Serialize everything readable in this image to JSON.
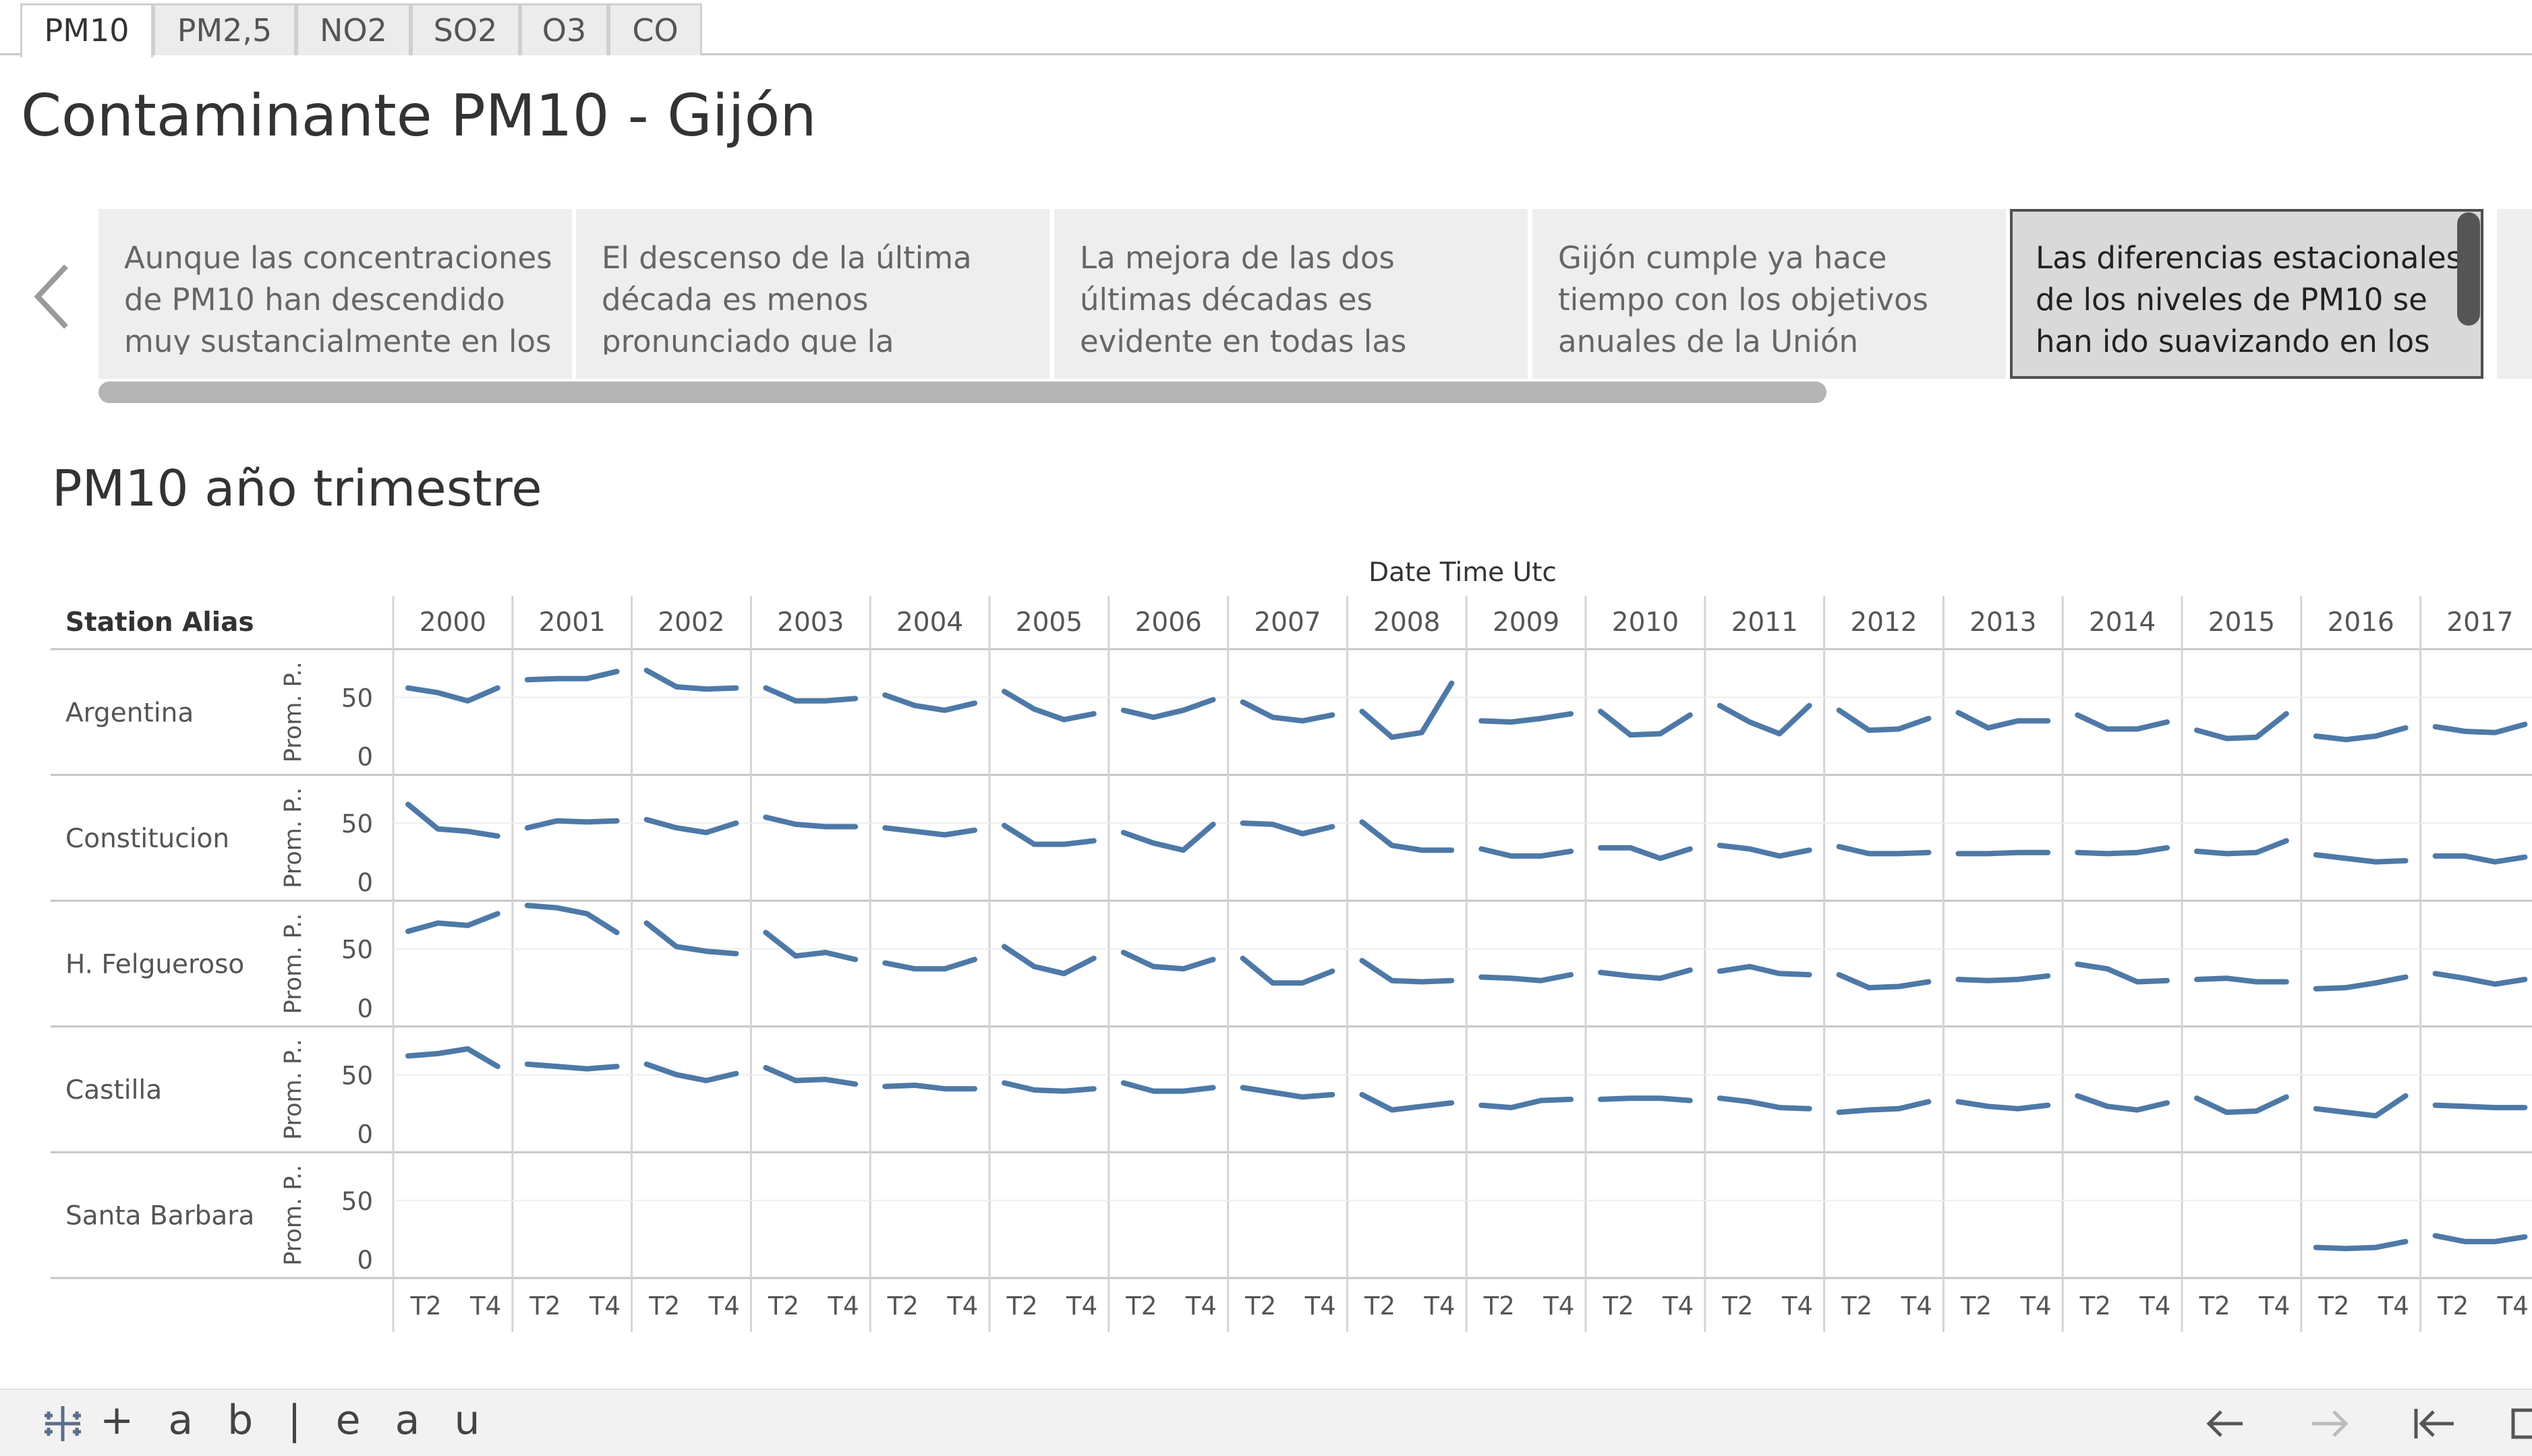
{
  "tabs": [
    {
      "label": "PM10",
      "active": true
    },
    {
      "label": "PM2,5",
      "active": false
    },
    {
      "label": "NO2",
      "active": false
    },
    {
      "label": "SO2",
      "active": false
    },
    {
      "label": "O3",
      "active": false
    },
    {
      "label": "CO",
      "active": false
    }
  ],
  "dashboard_title": "Contaminante PM10 - Gijón",
  "story_points": [
    {
      "text": "Aunque las concentraciones de PM10 han descendido muy sustancialmente en los",
      "active": false
    },
    {
      "text": "El descenso de la última década es menos pronunciado que la anterior,",
      "active": false
    },
    {
      "text": "La mejora de las dos últimas décadas es evidente en todas las estaciones. Los niveles de",
      "active": false
    },
    {
      "text": "Gijón cumple ya hace tiempo con los objetivos anuales de la Unión Europea, pero no con",
      "active": false
    },
    {
      "text": "Las diferencias estacionales de los niveles de PM10 se han ido suavizando en los últimos",
      "active": true
    }
  ],
  "sheet_title": "PM10 año trimestre",
  "icons": {
    "nav_prev": "chevron-left-icon",
    "logo": "tableau-logo-icon",
    "undo": "arrow-left-icon",
    "redo": "arrow-right-icon",
    "revert": "revert-to-start-icon",
    "more": "pause-icon"
  },
  "branding": {
    "logo_text": "+ a b | e a u"
  },
  "colors": {
    "line": "#4e79a7",
    "grid": "#d4d4d4",
    "axis": "#c6c6c6",
    "text": "#555555"
  },
  "chart_data": {
    "type": "line",
    "title": "PM10 año trimestre",
    "column_header": "Date Time Utc",
    "row_header": "Station Alias",
    "y_axis_label": "Prom. P..",
    "y_ticks": [
      0,
      50
    ],
    "ylim": [
      0,
      75
    ],
    "years": [
      "2000",
      "2001",
      "2002",
      "2003",
      "2004",
      "2005",
      "2006",
      "2007",
      "2008",
      "2009",
      "2010",
      "2011",
      "2012",
      "2013",
      "2014",
      "2015",
      "2016",
      "2017"
    ],
    "quarter_tick_labels": [
      "T2",
      "T4"
    ],
    "grid": true,
    "series": [
      {
        "name": "Argentina",
        "values": [
          [
            58,
            54,
            47,
            58
          ],
          [
            65,
            66,
            66,
            72
          ],
          [
            73,
            59,
            57,
            58
          ],
          [
            58,
            47,
            47,
            49
          ],
          [
            52,
            43,
            39,
            45
          ],
          [
            55,
            40,
            31,
            36
          ],
          [
            39,
            33,
            39,
            48
          ],
          [
            46,
            33,
            30,
            35
          ],
          [
            38,
            16,
            20,
            62
          ],
          [
            30,
            29,
            32,
            36
          ],
          [
            38,
            18,
            19,
            35
          ],
          [
            43,
            29,
            19,
            43
          ],
          [
            39,
            22,
            23,
            32
          ],
          [
            37,
            24,
            30,
            30
          ],
          [
            35,
            23,
            23,
            29
          ],
          [
            22,
            15,
            16,
            36
          ],
          [
            17,
            14,
            17,
            24
          ],
          [
            25,
            21,
            20,
            27
          ]
        ]
      },
      {
        "name": "Constitucion",
        "values": [
          [
            66,
            45,
            43,
            39
          ],
          [
            46,
            52,
            51,
            52
          ],
          [
            53,
            46,
            42,
            50
          ],
          [
            55,
            49,
            47,
            47
          ],
          [
            46,
            43,
            40,
            44
          ],
          [
            48,
            32,
            32,
            35
          ],
          [
            42,
            33,
            27,
            49
          ],
          [
            50,
            49,
            41,
            47
          ],
          [
            51,
            31,
            27,
            27
          ],
          [
            28,
            22,
            22,
            26
          ],
          [
            29,
            29,
            20,
            28
          ],
          [
            31,
            28,
            22,
            27
          ],
          [
            30,
            24,
            24,
            25
          ],
          [
            24,
            24,
            25,
            25
          ],
          [
            25,
            24,
            25,
            29
          ],
          [
            26,
            24,
            25,
            35
          ],
          [
            23,
            20,
            17,
            18
          ],
          [
            22,
            22,
            17,
            21
          ]
        ]
      },
      {
        "name": "H. Felgueroso",
        "values": [
          [
            65,
            72,
            70,
            80
          ],
          [
            87,
            85,
            80,
            64
          ],
          [
            72,
            52,
            48,
            46
          ],
          [
            64,
            44,
            47,
            41
          ],
          [
            38,
            33,
            33,
            41
          ],
          [
            52,
            35,
            29,
            42
          ],
          [
            47,
            35,
            33,
            41
          ],
          [
            42,
            21,
            21,
            31
          ],
          [
            40,
            23,
            22,
            23
          ],
          [
            26,
            25,
            23,
            28
          ],
          [
            30,
            27,
            25,
            32
          ],
          [
            31,
            35,
            29,
            28
          ],
          [
            28,
            17,
            18,
            22
          ],
          [
            24,
            23,
            24,
            27
          ],
          [
            37,
            33,
            22,
            23
          ],
          [
            24,
            25,
            22,
            22
          ],
          [
            16,
            17,
            21,
            26
          ],
          [
            29,
            25,
            20,
            24
          ]
        ]
      },
      {
        "name": "Castilla",
        "values": [
          [
            66,
            68,
            72,
            57
          ],
          [
            59,
            57,
            55,
            57
          ],
          [
            59,
            50,
            45,
            51
          ],
          [
            56,
            45,
            46,
            42
          ],
          [
            40,
            41,
            38,
            38
          ],
          [
            43,
            37,
            36,
            38
          ],
          [
            43,
            36,
            36,
            39
          ],
          [
            39,
            35,
            31,
            33
          ],
          [
            33,
            20,
            23,
            26
          ],
          [
            24,
            22,
            28,
            29
          ],
          [
            29,
            30,
            30,
            28
          ],
          [
            30,
            27,
            22,
            21
          ],
          [
            18,
            20,
            21,
            27
          ],
          [
            27,
            23,
            21,
            24
          ],
          [
            32,
            23,
            20,
            26
          ],
          [
            30,
            18,
            19,
            31
          ],
          [
            21,
            18,
            15,
            32
          ],
          [
            24,
            23,
            22,
            22
          ]
        ]
      },
      {
        "name": "Santa Barbara",
        "values": [
          [
            null,
            null,
            null,
            null
          ],
          [
            null,
            null,
            null,
            null
          ],
          [
            null,
            null,
            null,
            null
          ],
          [
            null,
            null,
            null,
            null
          ],
          [
            null,
            null,
            null,
            null
          ],
          [
            null,
            null,
            null,
            null
          ],
          [
            null,
            null,
            null,
            null
          ],
          [
            null,
            null,
            null,
            null
          ],
          [
            null,
            null,
            null,
            null
          ],
          [
            null,
            null,
            null,
            null
          ],
          [
            null,
            null,
            null,
            null
          ],
          [
            null,
            null,
            null,
            null
          ],
          [
            null,
            null,
            null,
            null
          ],
          [
            null,
            null,
            null,
            null
          ],
          [
            null,
            null,
            null,
            null
          ],
          [
            null,
            null,
            null,
            null
          ],
          [
            10,
            9,
            10,
            15
          ],
          [
            20,
            15,
            15,
            19
          ]
        ]
      }
    ]
  }
}
